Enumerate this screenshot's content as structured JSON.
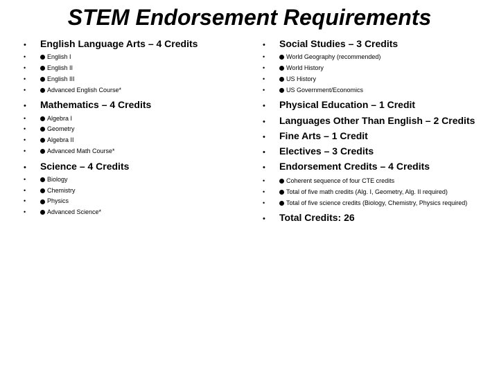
{
  "title": "STEM Endorsement Requirements",
  "left": [
    {
      "type": "header",
      "text": "English Language Arts – 4 Credits"
    },
    {
      "type": "sub",
      "marker": true,
      "text": "English I"
    },
    {
      "type": "sub",
      "marker": true,
      "text": "English II"
    },
    {
      "type": "sub",
      "marker": true,
      "text": "English III"
    },
    {
      "type": "sub",
      "marker": true,
      "text": "Advanced English Course*"
    },
    {
      "type": "header",
      "gap": true,
      "text": "Mathematics – 4 Credits"
    },
    {
      "type": "sub",
      "marker": true,
      "text": "Algebra I"
    },
    {
      "type": "sub",
      "marker": true,
      "text": "Geometry"
    },
    {
      "type": "sub",
      "marker": true,
      "text": "Algebra II"
    },
    {
      "type": "sub",
      "marker": true,
      "text": "Advanced Math Course*"
    },
    {
      "type": "header",
      "gap": true,
      "text": "Science – 4 Credits"
    },
    {
      "type": "sub",
      "marker": true,
      "text": "Biology"
    },
    {
      "type": "sub",
      "marker": true,
      "text": "Chemistry"
    },
    {
      "type": "sub",
      "marker": true,
      "text": "Physics"
    },
    {
      "type": "sub",
      "marker": true,
      "text": "Advanced Science*"
    }
  ],
  "right": [
    {
      "type": "header",
      "text": "Social Studies – 3 Credits"
    },
    {
      "type": "sub",
      "marker": true,
      "text": "World Geography (recommended)"
    },
    {
      "type": "sub",
      "marker": true,
      "text": "World History"
    },
    {
      "type": "sub",
      "marker": true,
      "text": "US History"
    },
    {
      "type": "sub",
      "marker": true,
      "text": "US Government/Economics"
    },
    {
      "type": "header",
      "gap": true,
      "text": "Physical Education – 1 Credit"
    },
    {
      "type": "header",
      "text": "Languages Other Than English – 2 Credits"
    },
    {
      "type": "header",
      "text": "Fine Arts – 1 Credit"
    },
    {
      "type": "header",
      "text": "Electives – 3 Credits"
    },
    {
      "type": "header",
      "text": "Endorsement Credits – 4 Credits"
    },
    {
      "type": "sub",
      "marker": true,
      "gap": true,
      "text": "Coherent sequence of four CTE credits"
    },
    {
      "type": "sub",
      "marker": true,
      "text": "Total of five math credits (Alg. I, Geometry, Alg. II required)"
    },
    {
      "type": "sub",
      "marker": true,
      "text": "Total of five science credits (Biology, Chemistry, Physics required)"
    },
    {
      "type": "header",
      "gap": true,
      "text": "Total Credits: 26"
    }
  ]
}
